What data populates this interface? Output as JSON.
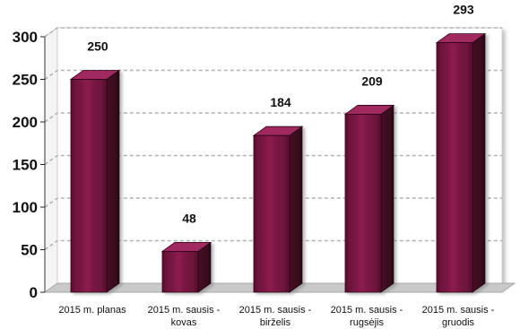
{
  "chart_data": {
    "type": "bar",
    "title": "",
    "xlabel": "",
    "ylabel": "",
    "ylim": [
      0,
      300
    ],
    "yticks": [
      0,
      50,
      100,
      150,
      200,
      250,
      300
    ],
    "grid": true,
    "legend": "none",
    "categories": [
      [
        "2015 m. planas"
      ],
      [
        "2015 m. sausis -",
        "kovas"
      ],
      [
        "2015 m. sausis -",
        "birželis"
      ],
      [
        "2015 m. sausis -",
        "rugsėjis"
      ],
      [
        "2015 m. sausis -",
        "gruodis"
      ]
    ],
    "values": [
      250,
      48,
      184,
      209,
      293
    ],
    "data_labels": [
      "250",
      "48",
      "184",
      "209",
      "293"
    ],
    "colors": {
      "bar_front": "#8b1c4e",
      "bar_front_dark": "#5e0f33",
      "bar_side": "#4a0a26",
      "bar_top": "#a02a60",
      "wall": "#ffffff",
      "floor": "#c9c9c9",
      "gridline": "#b3b3b3"
    }
  }
}
